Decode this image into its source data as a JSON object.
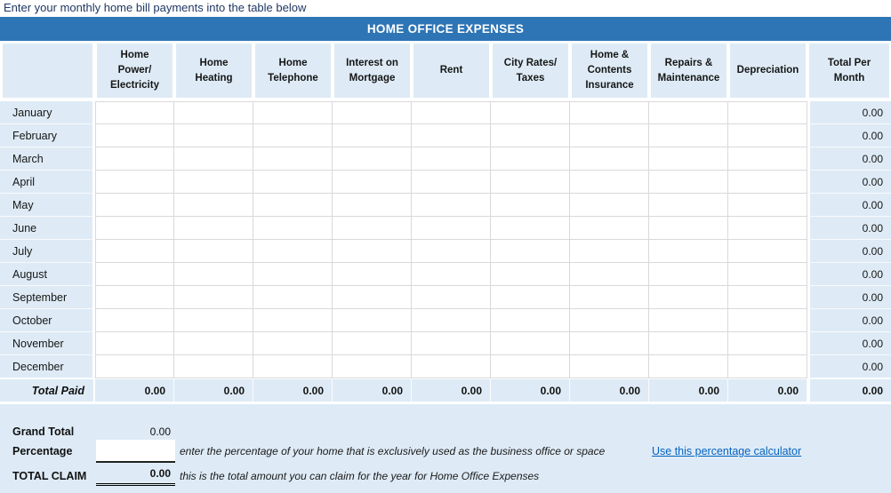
{
  "instruction": "Enter your monthly home bill payments into the table below",
  "table": {
    "title": "HOME OFFICE EXPENSES",
    "columns": [
      "Home\nPower/\nElectricity",
      "Home\nHeating",
      "Home\nTelephone",
      "Interest on\nMortgage",
      "Rent",
      "City Rates/\nTaxes",
      "Home &\nContents\nInsurance",
      "Repairs &\nMaintenance",
      "Depreciation",
      "Total Per\nMonth"
    ],
    "months": [
      "January",
      "February",
      "March",
      "April",
      "May",
      "June",
      "July",
      "August",
      "September",
      "October",
      "November",
      "December"
    ],
    "month_totals": [
      "0.00",
      "0.00",
      "0.00",
      "0.00",
      "0.00",
      "0.00",
      "0.00",
      "0.00",
      "0.00",
      "0.00",
      "0.00",
      "0.00"
    ],
    "total_paid": {
      "label": "Total Paid",
      "values": [
        "0.00",
        "0.00",
        "0.00",
        "0.00",
        "0.00",
        "0.00",
        "0.00",
        "0.00",
        "0.00"
      ],
      "total": "0.00"
    }
  },
  "summary": {
    "grand_total_label": "Grand Total",
    "grand_total_value": "0.00",
    "percentage_label": "Percentage",
    "percentage_value": "",
    "percentage_hint": "enter the percentage of your home that is exclusively used as the business office or space",
    "total_claim_label": "TOTAL CLAIM",
    "total_claim_value": "0.00",
    "total_claim_hint": "this is the total amount you can claim for the year for Home Office Expenses",
    "link_label": "Use this percentage calculator"
  },
  "colors": {
    "title_bar": "#2E75B5",
    "light_blue_cell": "#DEEBF6",
    "grid_border": "#D9D9D9",
    "instruction_text": "#1F3864",
    "link": "#0563C1"
  }
}
